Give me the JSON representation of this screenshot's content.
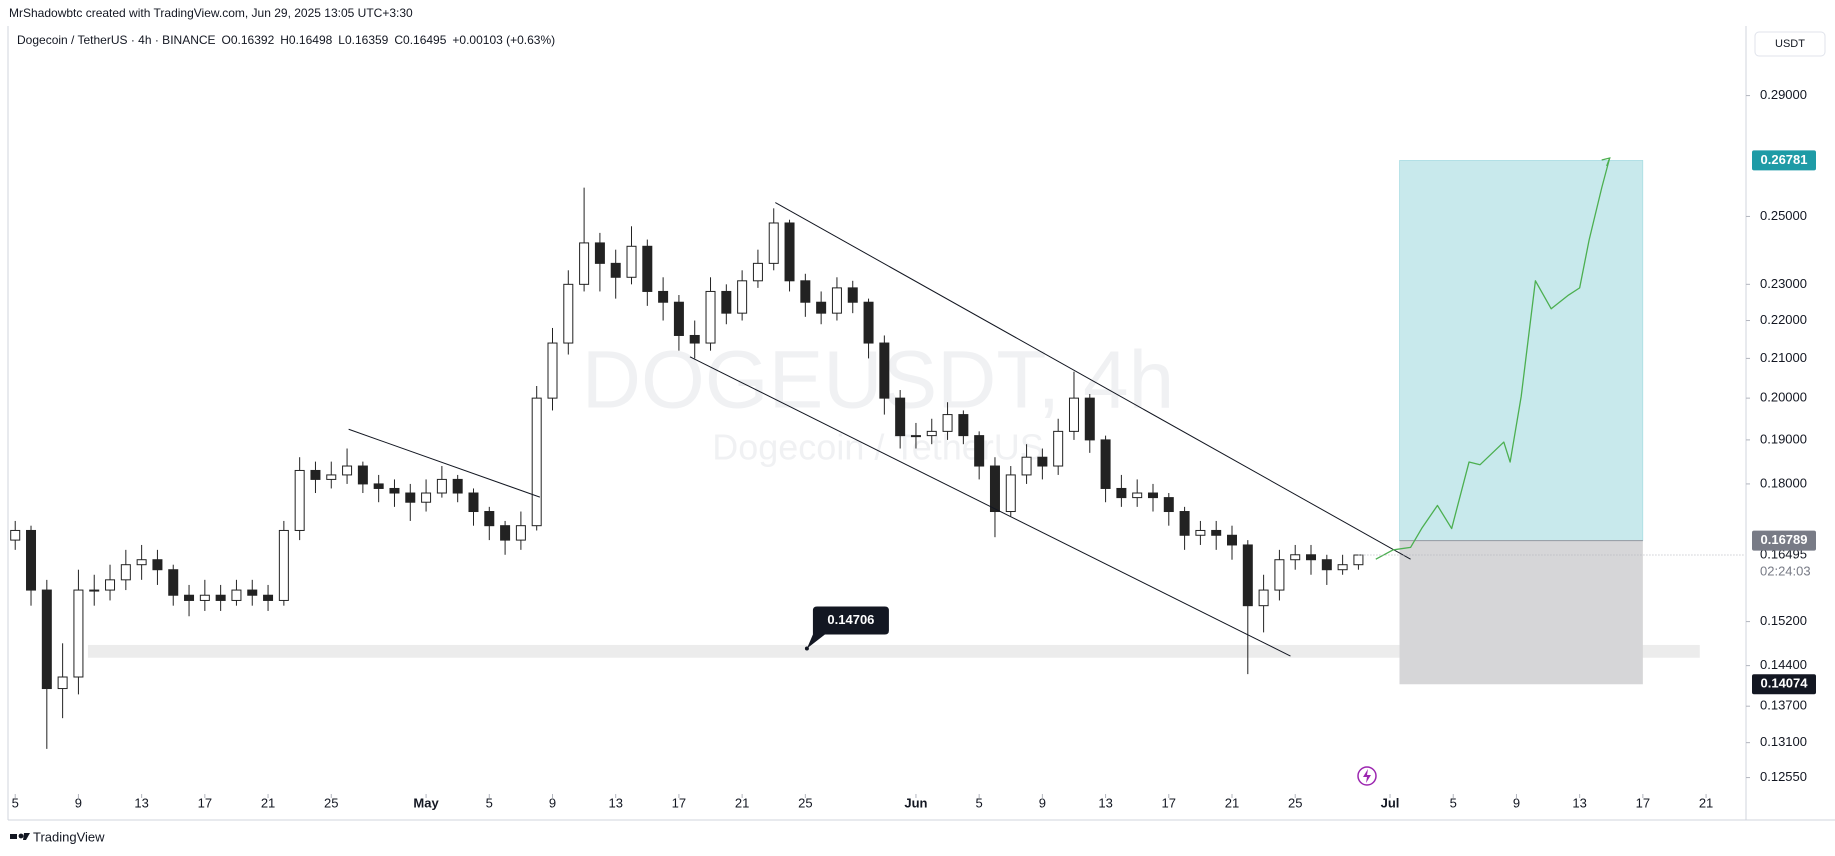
{
  "header": {
    "attribution": "MrShadowbtc created with TradingView.com, Jun 29, 2025 13:05 UTC+3:30",
    "currency": "USDT",
    "footer": "TradingView"
  },
  "chart_data": {
    "type": "candlestick",
    "title": "Dogecoin / TetherUS · 4h · BINANCE",
    "ohlc_legend": [
      "O0.16392",
      "H0.16498",
      "L0.16359",
      "C0.16495",
      "+0.00103 (+0.63%)"
    ],
    "watermark": [
      "DOGEUSDT, 4h",
      "Dogecoin / TetherUS"
    ],
    "log_scale": true,
    "grid": false,
    "up_color": "#ffffff",
    "down_color": "#222222",
    "x": [
      0,
      1,
      2,
      3,
      4,
      5,
      6,
      7,
      8,
      9,
      10,
      11,
      12,
      13,
      14,
      15,
      16,
      17,
      18,
      19,
      20,
      21,
      22,
      23,
      24,
      25,
      26,
      27,
      28,
      29,
      30,
      31,
      32,
      33,
      34,
      35,
      36,
      37,
      38,
      39,
      40,
      41,
      42,
      43,
      44,
      45,
      46,
      47,
      48,
      49,
      50,
      51,
      52,
      53,
      54,
      55,
      56,
      57,
      58,
      59,
      60,
      61,
      62,
      63,
      64,
      65,
      66,
      67,
      68,
      69,
      70,
      71,
      72,
      73,
      74,
      75,
      76,
      77,
      78,
      79,
      80,
      81,
      82,
      83,
      84,
      85
    ],
    "open": [
      0.168,
      0.17,
      0.158,
      0.14,
      0.142,
      0.158,
      0.158,
      0.16,
      0.163,
      0.164,
      0.162,
      0.157,
      0.156,
      0.157,
      0.156,
      0.158,
      0.157,
      0.156,
      0.17,
      0.183,
      0.181,
      0.182,
      0.184,
      0.18,
      0.179,
      0.178,
      0.176,
      0.178,
      0.181,
      0.178,
      0.174,
      0.171,
      0.168,
      0.171,
      0.2,
      0.214,
      0.23,
      0.242,
      0.236,
      0.232,
      0.241,
      0.228,
      0.225,
      0.216,
      0.214,
      0.228,
      0.222,
      0.231,
      0.236,
      0.248,
      0.231,
      0.225,
      0.222,
      0.229,
      0.225,
      0.214,
      0.2,
      0.191,
      0.191,
      0.192,
      0.196,
      0.191,
      0.184,
      0.174,
      0.182,
      0.186,
      0.184,
      0.192,
      0.2,
      0.19,
      0.179,
      0.177,
      0.178,
      0.177,
      0.174,
      0.169,
      0.17,
      0.169,
      0.167,
      0.155,
      0.158,
      0.164,
      0.165,
      0.164,
      0.162,
      0.163
    ],
    "high": [
      0.172,
      0.171,
      0.16,
      0.148,
      0.162,
      0.161,
      0.163,
      0.166,
      0.167,
      0.166,
      0.163,
      0.159,
      0.16,
      0.159,
      0.16,
      0.16,
      0.159,
      0.172,
      0.186,
      0.185,
      0.185,
      0.188,
      0.185,
      0.182,
      0.181,
      0.18,
      0.181,
      0.184,
      0.182,
      0.179,
      0.175,
      0.172,
      0.174,
      0.203,
      0.218,
      0.234,
      0.259,
      0.245,
      0.24,
      0.247,
      0.243,
      0.232,
      0.227,
      0.22,
      0.232,
      0.23,
      0.234,
      0.24,
      0.2525,
      0.249,
      0.233,
      0.228,
      0.232,
      0.231,
      0.226,
      0.216,
      0.202,
      0.194,
      0.195,
      0.199,
      0.197,
      0.192,
      0.186,
      0.184,
      0.189,
      0.188,
      0.195,
      0.2066,
      0.201,
      0.191,
      0.182,
      0.181,
      0.18,
      0.178,
      0.175,
      0.172,
      0.172,
      0.171,
      0.168,
      0.161,
      0.166,
      0.167,
      0.167,
      0.165,
      0.165,
      0.16498
    ],
    "low": [
      0.166,
      0.155,
      0.13,
      0.135,
      0.139,
      0.155,
      0.156,
      0.158,
      0.16,
      0.159,
      0.155,
      0.153,
      0.154,
      0.154,
      0.155,
      0.155,
      0.154,
      0.155,
      0.168,
      0.178,
      0.179,
      0.18,
      0.178,
      0.176,
      0.175,
      0.172,
      0.174,
      0.177,
      0.176,
      0.171,
      0.168,
      0.165,
      0.166,
      0.17,
      0.197,
      0.211,
      0.228,
      0.228,
      0.226,
      0.23,
      0.224,
      0.22,
      0.212,
      0.21,
      0.212,
      0.219,
      0.22,
      0.229,
      0.234,
      0.228,
      0.221,
      0.219,
      0.22,
      0.222,
      0.21,
      0.196,
      0.188,
      0.188,
      0.189,
      0.19,
      0.189,
      0.181,
      0.1686,
      0.173,
      0.18,
      0.181,
      0.182,
      0.19,
      0.187,
      0.176,
      0.175,
      0.175,
      0.174,
      0.171,
      0.166,
      0.167,
      0.166,
      0.164,
      0.1425,
      0.15,
      0.156,
      0.162,
      0.161,
      0.159,
      0.161,
      0.162
    ],
    "close": [
      0.17,
      0.158,
      0.14,
      0.142,
      0.158,
      0.158,
      0.16,
      0.163,
      0.164,
      0.162,
      0.157,
      0.156,
      0.157,
      0.156,
      0.158,
      0.157,
      0.156,
      0.17,
      0.183,
      0.181,
      0.182,
      0.184,
      0.18,
      0.179,
      0.178,
      0.176,
      0.178,
      0.181,
      0.178,
      0.174,
      0.171,
      0.168,
      0.171,
      0.2,
      0.214,
      0.23,
      0.242,
      0.236,
      0.232,
      0.241,
      0.228,
      0.225,
      0.216,
      0.214,
      0.228,
      0.222,
      0.231,
      0.236,
      0.248,
      0.231,
      0.225,
      0.222,
      0.229,
      0.225,
      0.214,
      0.2,
      0.191,
      0.191,
      0.192,
      0.196,
      0.191,
      0.184,
      0.174,
      0.182,
      0.186,
      0.184,
      0.192,
      0.2,
      0.19,
      0.179,
      0.177,
      0.178,
      0.177,
      0.174,
      0.169,
      0.17,
      0.169,
      0.167,
      0.155,
      0.158,
      0.164,
      0.165,
      0.164,
      0.162,
      0.163,
      0.16495
    ],
    "xlim": [
      -0.33,
      109.4
    ],
    "xticks": [
      {
        "value": 0,
        "label": "5"
      },
      {
        "value": 4,
        "label": "9"
      },
      {
        "value": 8,
        "label": "13"
      },
      {
        "value": 12,
        "label": "17"
      },
      {
        "value": 16,
        "label": "21"
      },
      {
        "value": 20,
        "label": "25"
      },
      {
        "value": 26,
        "label": "May"
      },
      {
        "value": 30,
        "label": "5"
      },
      {
        "value": 34,
        "label": "9"
      },
      {
        "value": 38,
        "label": "13"
      },
      {
        "value": 42,
        "label": "17"
      },
      {
        "value": 46,
        "label": "21"
      },
      {
        "value": 50,
        "label": "25"
      },
      {
        "value": 57,
        "label": "Jun"
      },
      {
        "value": 61,
        "label": "5"
      },
      {
        "value": 65,
        "label": "9"
      },
      {
        "value": 69,
        "label": "13"
      },
      {
        "value": 73,
        "label": "17"
      },
      {
        "value": 77,
        "label": "21"
      },
      {
        "value": 81,
        "label": "25"
      },
      {
        "value": 87,
        "label": "Jul"
      },
      {
        "value": 91,
        "label": "5"
      },
      {
        "value": 95,
        "label": "9"
      },
      {
        "value": 99,
        "label": "13"
      },
      {
        "value": 103,
        "label": "17"
      },
      {
        "value": 107,
        "label": "21"
      }
    ],
    "ylim": [
      0.1236,
      0.3151
    ],
    "yticks": [
      {
        "value": 0.29,
        "label": "0.29000"
      },
      {
        "value": 0.25,
        "label": "0.25000"
      },
      {
        "value": 0.23,
        "label": "0.23000"
      },
      {
        "value": 0.22,
        "label": "0.22000"
      },
      {
        "value": 0.21,
        "label": "0.21000"
      },
      {
        "value": 0.2,
        "label": "0.20000"
      },
      {
        "value": 0.19,
        "label": "0.19000"
      },
      {
        "value": 0.18,
        "label": "0.18000"
      },
      {
        "value": 0.152,
        "label": "0.15200"
      },
      {
        "value": 0.144,
        "label": "0.14400"
      },
      {
        "value": 0.137,
        "label": "0.13700"
      },
      {
        "value": 0.131,
        "label": "0.13100"
      },
      {
        "value": 0.1255,
        "label": "0.12550"
      }
    ],
    "price_markers": [
      {
        "value": 0.26781,
        "color": "#1e9ba6"
      },
      {
        "value": 0.16789,
        "color": "#787b86"
      },
      {
        "value": 0.14074,
        "color": "#131722"
      }
    ],
    "last_price": {
      "value": 0.16495,
      "countdown": "02:24:03"
    },
    "position": {
      "x": [
        87.6,
        103
      ],
      "target": 0.26781,
      "entry": 0.16789,
      "stop": 0.14074,
      "target_color": "#c8e9ec",
      "stop_color": "#d6d6d8"
    },
    "zone": {
      "x": [
        4.6,
        106.6
      ],
      "y": [
        0.1454,
        0.1477
      ],
      "color": "#ececec"
    },
    "callout": {
      "value": 0.14706,
      "x": 50.1
    },
    "trendlines": [
      [
        [
          21.1,
          0.1925
        ],
        [
          33.2,
          0.1771
        ]
      ],
      [
        [
          48.1,
          0.2543
        ],
        [
          88.3,
          0.1641
        ]
      ],
      [
        [
          42.7,
          0.2104
        ],
        [
          80.7,
          0.1457
        ]
      ]
    ],
    "projection": {
      "color": "#4caf50",
      "x": [
        86.1,
        87.2,
        88.3,
        89.0,
        90.0,
        90.9,
        92.0,
        92.7,
        94.2,
        94.6,
        95.3,
        96.2,
        97.2,
        98.3,
        99.0,
        99.6,
        100.4,
        100.9
      ],
      "y": [
        0.1641,
        0.166,
        0.1665,
        0.1704,
        0.1753,
        0.1704,
        0.1849,
        0.1843,
        0.1895,
        0.1849,
        0.2004,
        0.231,
        0.2232,
        0.227,
        0.229,
        0.2429,
        0.259,
        0.2686
      ]
    }
  }
}
